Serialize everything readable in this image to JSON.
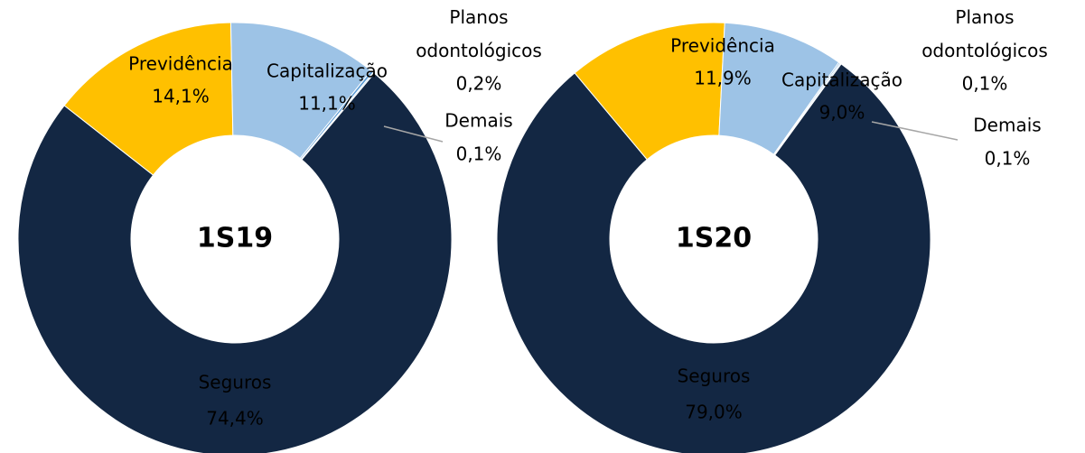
{
  "chart_data": [
    {
      "type": "pie",
      "title": "1S19",
      "categories": [
        "Seguros",
        "Previdência",
        "Capitalização",
        "Planos odontológicos",
        "Demais"
      ],
      "values": [
        74.4,
        14.1,
        11.1,
        0.2,
        0.1
      ],
      "value_labels": [
        "74,4%",
        "14,1%",
        "11,1%",
        "0,2%",
        "0,1%"
      ],
      "colors": [
        "#132743",
        "#FFC000",
        "#9DC3E6",
        "#5B9BD5",
        "#BDD7EE"
      ]
    },
    {
      "type": "pie",
      "title": "1S20",
      "categories": [
        "Seguros",
        "Previdência",
        "Capitalização",
        "Planos odontológicos",
        "Demais"
      ],
      "values": [
        79.0,
        11.9,
        9.0,
        0.1,
        0.1
      ],
      "value_labels": [
        "79,0%",
        "11,9%",
        "9,0%",
        "0,1%",
        "0,1%"
      ],
      "colors": [
        "#132743",
        "#FFC000",
        "#9DC3E6",
        "#5B9BD5",
        "#BDD7EE"
      ]
    }
  ]
}
